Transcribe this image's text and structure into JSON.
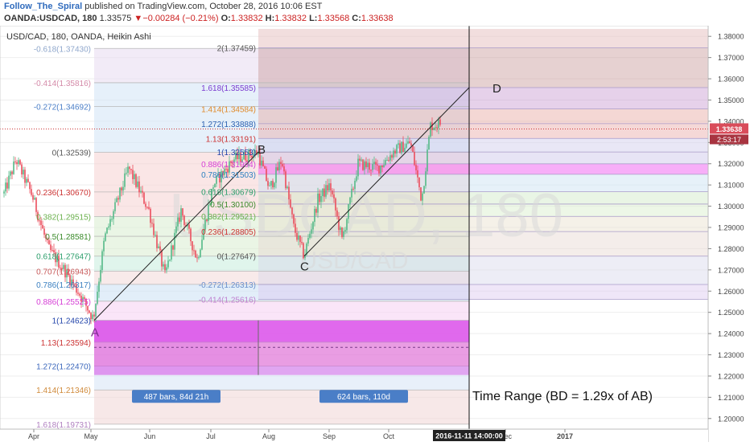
{
  "header": {
    "author": "Follow_The_Spiral",
    "published_text": "published on TradingView.com, October 28, 2016 10:06 EST",
    "symbol": "OANDA:USDCAD, 180",
    "last": "1.33575",
    "change_arrow": "▼",
    "change": "−0.00284 (−0.21%)",
    "o_label": "O:",
    "o": "1.33832",
    "h_label": "H:",
    "h": "1.33832",
    "l_label": "L:",
    "l": "1.33568",
    "c_label": "C:",
    "c": "1.33638"
  },
  "colors": {
    "up": "#53b987",
    "down": "#eb4d5c",
    "accent_blue": "#4a7ec7",
    "magenta": "#e070ef"
  },
  "chart_data": {
    "type": "candlestick",
    "title": "USD/CAD, 180, OANDA, Heikin Ashi",
    "watermark_symbol": "USDCAD, 180",
    "watermark_sub": "USD/CAD",
    "ylim": [
      1.195,
      1.385
    ],
    "y_ticks": [
      1.38,
      1.37,
      1.36,
      1.35,
      1.34,
      1.33,
      1.32,
      1.31,
      1.3,
      1.29,
      1.28,
      1.27,
      1.26,
      1.25,
      1.24,
      1.23,
      1.22,
      1.21,
      1.2
    ],
    "x_labels": [
      "Apr",
      "May",
      "Jun",
      "Jul",
      "Aug",
      "Sep",
      "Oct",
      "Dec",
      "2017"
    ],
    "x_cursor_label": "2016-11-11 14:00:00",
    "current_price": "1.33638",
    "countdown": "2:53:17",
    "fib_left": [
      {
        "label": "-0.618(1.37430)",
        "value": 1.3743
      },
      {
        "label": "-0.414(1.35816)",
        "value": 1.35816
      },
      {
        "label": "-0.272(1.34692)",
        "value": 1.34692
      },
      {
        "label": "0(1.32539)",
        "value": 1.32539
      },
      {
        "label": "0.236(1.30670)",
        "value": 1.3067
      },
      {
        "label": "0.382(1.29515)",
        "value": 1.29515
      },
      {
        "label": "0.5(1.28581)",
        "value": 1.28581
      },
      {
        "label": "0.618(1.27647)",
        "value": 1.27647
      },
      {
        "label": "0.707(1.26943)",
        "value": 1.26943
      },
      {
        "label": "0.786(1.26317)",
        "value": 1.26317
      },
      {
        "label": "0.886(1.25525)",
        "value": 1.25525
      },
      {
        "label": "1(1.24623)",
        "value": 1.24623
      },
      {
        "label": "1.13(1.23594)",
        "value": 1.23594
      },
      {
        "label": "1.272(1.22470)",
        "value": 1.2247
      },
      {
        "label": "1.414(1.21346)",
        "value": 1.21346
      },
      {
        "label": "1.618(1.19731)",
        "value": 1.19731
      }
    ],
    "fib_right": [
      {
        "label": "2(1.37459)",
        "value": 1.37459
      },
      {
        "label": "1.618(1.35585)",
        "value": 1.35585
      },
      {
        "label": "1.414(1.34584)",
        "value": 1.34584
      },
      {
        "label": "1.272(1.33888)",
        "value": 1.33888
      },
      {
        "label": "1.13(1.33191)",
        "value": 1.33191
      },
      {
        "label": "1(1.32553)",
        "value": 1.32553
      },
      {
        "label": "0.886(1.31994)",
        "value": 1.31994
      },
      {
        "label": "0.786(1.31503)",
        "value": 1.31503
      },
      {
        "label": "0.618(1.30679)",
        "value": 1.30679
      },
      {
        "label": "0.5(1.30100)",
        "value": 1.301
      },
      {
        "label": "0.382(1.29521)",
        "value": 1.29521
      },
      {
        "label": "0.236(1.28805)",
        "value": 1.28805
      },
      {
        "label": "0(1.27647)",
        "value": 1.27647
      },
      {
        "label": "-0.272(1.26313)",
        "value": 1.26313
      },
      {
        "label": "-0.414(1.25616)",
        "value": 1.25616
      }
    ],
    "points": [
      {
        "label": "A",
        "value": 1.24623
      },
      {
        "label": "B",
        "value": 1.32553
      },
      {
        "label": "C",
        "value": 1.27647
      },
      {
        "label": "D",
        "value": 1.35585
      }
    ],
    "bar_ranges": [
      {
        "label": "487 bars, 84d 21h"
      },
      {
        "label": "624 bars, 110d"
      }
    ],
    "annotation": "Time Range (BD = 1.29x of AB)"
  }
}
